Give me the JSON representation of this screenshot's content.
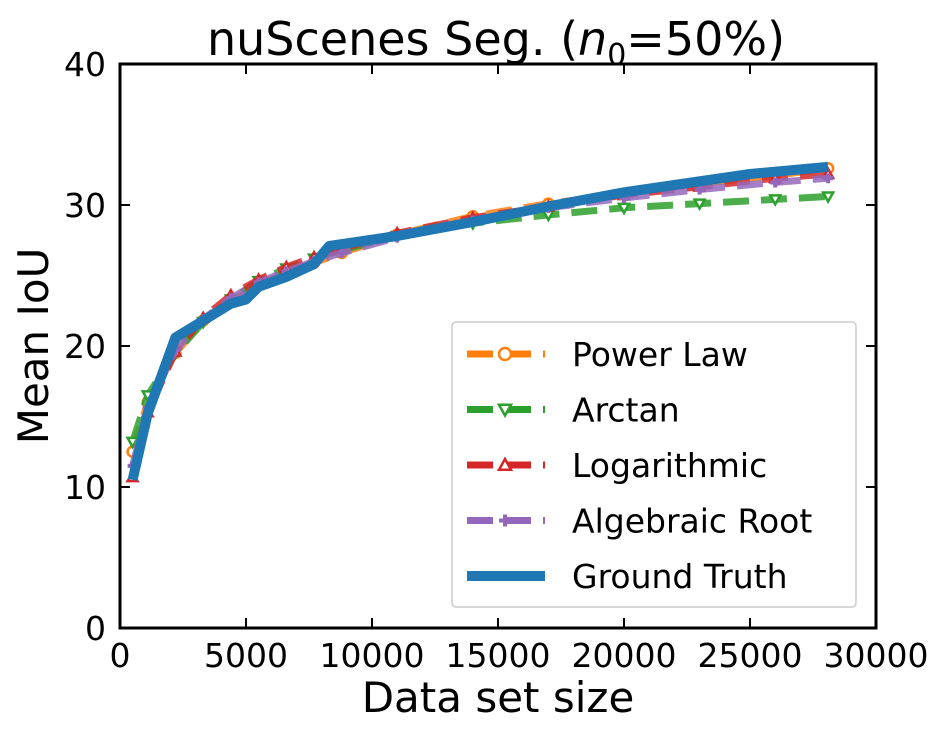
{
  "chart_data": {
    "type": "line",
    "title": "nuScenes Seg. (",
    "title_var": "n",
    "title_sub": "0",
    "title_rest": "=50%)",
    "xlabel": "Data set size",
    "ylabel": "Mean IoU",
    "xlim": [
      0,
      30000
    ],
    "ylim": [
      0,
      40
    ],
    "xticks": [
      0,
      5000,
      10000,
      15000,
      20000,
      25000,
      30000
    ],
    "xtick_labels": [
      "0",
      "5000",
      "10000",
      "15000",
      "20000",
      "25000",
      "30000"
    ],
    "yticks": [
      0,
      10,
      20,
      30,
      40
    ],
    "ytick_labels": [
      "0",
      "10",
      "20",
      "30",
      "40"
    ],
    "grid": false,
    "legend_position": "lower-right",
    "series": [
      {
        "name": "Power Law",
        "color": "#ff7f0e",
        "style": "dashed",
        "marker": "circle",
        "x": [
          500,
          1100,
          2200,
          3300,
          4400,
          5500,
          6600,
          7700,
          8800,
          11000,
          14000,
          17000,
          20000,
          23000,
          26000,
          28100
        ],
        "y": [
          12.5,
          16.0,
          19.5,
          21.8,
          23.2,
          24.3,
          25.2,
          25.9,
          26.6,
          27.9,
          29.2,
          30.1,
          30.8,
          31.5,
          32.1,
          32.6
        ]
      },
      {
        "name": "Arctan",
        "color": "#2ca02c",
        "style": "dashed",
        "marker": "triangle-down",
        "x": [
          500,
          1100,
          2200,
          3300,
          4400,
          5500,
          6600,
          7700,
          8800,
          11000,
          14000,
          17000,
          20000,
          23000,
          26000,
          28100
        ],
        "y": [
          13.2,
          16.5,
          19.5,
          21.7,
          23.3,
          24.6,
          25.5,
          26.2,
          26.8,
          27.8,
          28.7,
          29.3,
          29.8,
          30.1,
          30.4,
          30.6
        ]
      },
      {
        "name": "Logarithmic",
        "color": "#d62728",
        "style": "dashed",
        "marker": "triangle-up",
        "x": [
          500,
          1100,
          2200,
          3300,
          4400,
          5500,
          6600,
          7700,
          8800,
          11000,
          14000,
          17000,
          20000,
          23000,
          26000,
          28100
        ],
        "y": [
          10.7,
          15.3,
          19.6,
          22.0,
          23.6,
          24.7,
          25.6,
          26.3,
          26.9,
          28.0,
          29.1,
          29.9,
          30.7,
          31.3,
          31.9,
          32.2
        ]
      },
      {
        "name": "Algebraic Root",
        "color": "#9467bd",
        "style": "dashed",
        "marker": "plus",
        "x": [
          500,
          1100,
          2200,
          3300,
          4400,
          5500,
          6600,
          7700,
          8800,
          11000,
          14000,
          17000,
          20000,
          23000,
          26000,
          28100
        ],
        "y": [
          11.5,
          15.6,
          19.7,
          21.9,
          23.4,
          24.5,
          25.3,
          26.0,
          26.6,
          27.7,
          28.9,
          29.8,
          30.5,
          31.1,
          31.6,
          31.9
        ]
      },
      {
        "name": "Ground Truth",
        "color": "#1f77b4",
        "style": "solid",
        "marker": "none",
        "x": [
          500,
          1100,
          2200,
          3300,
          4400,
          5000,
          5500,
          6600,
          7700,
          8300,
          11000,
          14000,
          17000,
          20000,
          25000,
          28100
        ],
        "y": [
          10.5,
          15.2,
          20.6,
          21.8,
          23.0,
          23.3,
          24.2,
          24.9,
          25.8,
          27.1,
          27.8,
          28.8,
          29.9,
          30.9,
          32.2,
          32.7
        ]
      }
    ]
  }
}
